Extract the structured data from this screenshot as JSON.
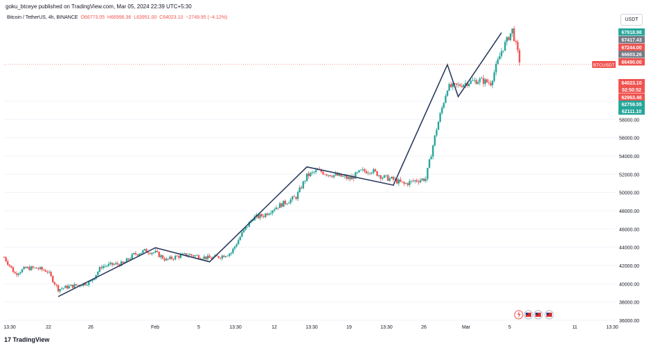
{
  "publish_line": "goku_btceye published on TradingView.com, Mar 05, 2024 22:39 UTC+5:30",
  "symbol": {
    "name": "Bitcoin / TetherUS, 4h, BINANCE",
    "o": "O66773.05",
    "h": "H66996.36",
    "l": "L63951.00",
    "c": "C64023.10",
    "chg": "−2749.95 (−4.12%)"
  },
  "currency_button": "USDT",
  "footer": "TradingView",
  "chart_data": {
    "type": "candlestick",
    "y_ticks": [
      "36000.00",
      "38000.00",
      "40000.00",
      "42000.00",
      "44000.00",
      "46000.00",
      "48000.00",
      "50000.00",
      "52000.00",
      "54000.00",
      "56000.00",
      "58000.00",
      "60000.00"
    ],
    "ylim": [
      36000,
      68500
    ],
    "x_ticks": [
      "13:30",
      "22",
      "26",
      "Feb",
      "5",
      "13:30",
      "12",
      "13:30",
      "19",
      "13:30",
      "26",
      "Mar",
      "5",
      "11",
      "13:30"
    ],
    "price_labels": [
      {
        "text": "67918.98",
        "value": 67918.98,
        "color": "#26a69a"
      },
      {
        "text": "67417.43",
        "value": 67417.43,
        "color": "#787b86"
      },
      {
        "text": "67244.00",
        "value": 67244.0,
        "color": "#ef5350"
      },
      {
        "text": "66603.26",
        "value": 66603.26,
        "color": "#787b86"
      },
      {
        "text": "66490.00",
        "value": 66490.0,
        "color": "#ef5350"
      },
      {
        "text": "64023.10",
        "value": 64023.1,
        "color": "#ef5350"
      },
      {
        "text": "02:50:52",
        "value": 63250,
        "color": "#ef5350"
      },
      {
        "text": "62963.46",
        "value": 62963.46,
        "color": "#ef5350"
      },
      {
        "text": "62759.55",
        "value": 62759.55,
        "color": "#26a69a"
      },
      {
        "text": "62111.10",
        "value": 62111.1,
        "color": "#26a69a"
      }
    ],
    "symbol_tag": "BTCUSDT",
    "last_price": 64023.1,
    "trend_line": [
      {
        "x": "2024-01-23",
        "y": 38600
      },
      {
        "x": "2024-02-01",
        "y": 43950
      },
      {
        "x": "2024-02-06",
        "y": 42400
      },
      {
        "x": "2024-02-15",
        "y": 52800
      },
      {
        "x": "2024-02-23",
        "y": 50800
      },
      {
        "x": "2024-02-28",
        "y": 64000
      },
      {
        "x": "2024-02-29",
        "y": 60500
      },
      {
        "x": "2024-03-04",
        "y": 67500
      }
    ],
    "price_path": [
      [
        "2024-01-18",
        42900
      ],
      [
        "2024-01-19",
        41100
      ],
      [
        "2024-01-20",
        41700
      ],
      [
        "2024-01-21",
        41700
      ],
      [
        "2024-01-22",
        41400
      ],
      [
        "2024-01-23",
        39400
      ],
      [
        "2024-01-24",
        39700
      ],
      [
        "2024-01-25",
        39900
      ],
      [
        "2024-01-26",
        40200
      ],
      [
        "2024-01-27",
        41900
      ],
      [
        "2024-01-28",
        42100
      ],
      [
        "2024-01-29",
        42200
      ],
      [
        "2024-01-30",
        43200
      ],
      [
        "2024-01-31",
        43600
      ],
      [
        "2024-02-01",
        43400
      ],
      [
        "2024-02-02",
        42600
      ],
      [
        "2024-02-03",
        43000
      ],
      [
        "2024-02-04",
        43200
      ],
      [
        "2024-02-05",
        43000
      ],
      [
        "2024-02-06",
        42800
      ],
      [
        "2024-02-07",
        43000
      ],
      [
        "2024-02-08",
        43400
      ],
      [
        "2024-02-09",
        45500
      ],
      [
        "2024-02-10",
        47200
      ],
      [
        "2024-02-11",
        47500
      ],
      [
        "2024-02-12",
        48300
      ],
      [
        "2024-02-13",
        48900
      ],
      [
        "2024-02-14",
        49500
      ],
      [
        "2024-02-15",
        51800
      ],
      [
        "2024-02-16",
        52400
      ],
      [
        "2024-02-17",
        52000
      ],
      [
        "2024-02-18",
        51800
      ],
      [
        "2024-02-19",
        51500
      ],
      [
        "2024-02-20",
        52300
      ],
      [
        "2024-02-21",
        52400
      ],
      [
        "2024-02-22",
        51700
      ],
      [
        "2024-02-23",
        51400
      ],
      [
        "2024-02-24",
        50900
      ],
      [
        "2024-02-25",
        51300
      ],
      [
        "2024-02-26",
        51500
      ],
      [
        "2024-02-27",
        57000
      ],
      [
        "2024-02-28",
        61500
      ],
      [
        "2024-02-29",
        61700
      ],
      [
        "2024-03-01",
        62100
      ],
      [
        "2024-03-02",
        62300
      ],
      [
        "2024-03-03",
        62000
      ],
      [
        "2024-03-04",
        65500
      ],
      [
        "2024-03-05",
        67800
      ],
      [
        "2024-03-05T18:00",
        64023
      ]
    ],
    "event_icons": [
      "lightning-icon",
      "us-flag-icon",
      "us-flag-icon",
      "us-flag-icon"
    ],
    "colors": {
      "up": "#26a69a",
      "down": "#ef5350",
      "trend": "#2a3a5e",
      "grid": "#f0f3fa"
    }
  }
}
